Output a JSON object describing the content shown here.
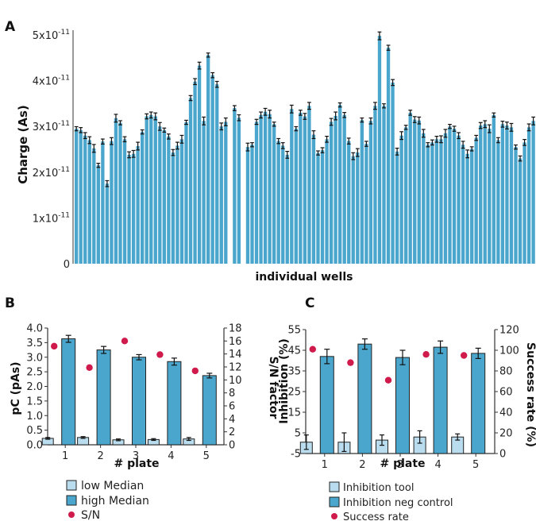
{
  "colors": {
    "bar": "#4aa6cc",
    "bar_dark": "#3d8db3",
    "bar_light": "#b9dcee",
    "dot": "#cf1a4b",
    "axis": "#333333"
  },
  "chart_data": [
    {
      "panel": "A",
      "type": "bar",
      "xlabel": "individual wells",
      "ylabel": "Charge (As)",
      "ylim": [
        0,
        5e-11
      ],
      "yticks": [
        0,
        1e-11,
        2e-11,
        3e-11,
        4e-11,
        5e-11
      ],
      "ytick_labels": [
        {
          "base": "0",
          "exp": ""
        },
        {
          "base": "1x10",
          "exp": "-11"
        },
        {
          "base": "2x10",
          "exp": "-11"
        },
        {
          "base": "3x10",
          "exp": "-11"
        },
        {
          "base": "4x10",
          "exp": "-11"
        },
        {
          "base": "5x10",
          "exp": "-11"
        }
      ],
      "values_e11": [
        2.95,
        2.92,
        2.8,
        2.7,
        2.52,
        2.15,
        2.67,
        1.75,
        2.68,
        3.18,
        3.08,
        2.72,
        2.38,
        2.4,
        2.57,
        2.88,
        3.22,
        3.25,
        3.22,
        3.0,
        2.92,
        2.78,
        2.43,
        2.58,
        2.72,
        3.09,
        3.62,
        3.98,
        4.33,
        3.12,
        4.56,
        4.12,
        3.92,
        3.0,
        3.1,
        null,
        3.4,
        3.19,
        null,
        2.55,
        2.6,
        3.1,
        3.25,
        3.32,
        3.27,
        3.05,
        2.68,
        2.58,
        2.38,
        3.38,
        2.95,
        3.3,
        3.22,
        3.45,
        2.82,
        2.42,
        2.48,
        2.72,
        3.1,
        3.23,
        3.47,
        3.25,
        2.68,
        2.35,
        2.43,
        3.14,
        2.62,
        3.12,
        3.45,
        4.98,
        3.45,
        4.72,
        3.96,
        2.45,
        2.8,
        2.98,
        3.3,
        3.15,
        3.13,
        2.85,
        2.6,
        2.65,
        2.72,
        2.72,
        2.85,
        3.0,
        2.95,
        2.8,
        2.6,
        2.4,
        2.51,
        2.75,
        3.02,
        3.05,
        2.95,
        3.25,
        2.7,
        3.05,
        3.02,
        2.98,
        2.55,
        2.3,
        2.65,
        2.98,
        3.12
      ]
    },
    {
      "panel": "B",
      "type": "bar",
      "xlabel": "# plate",
      "ylabel": "pC (pAs)",
      "y2label": "S/N factor",
      "categories": [
        "1",
        "2",
        "3",
        "4",
        "5"
      ],
      "ylim": [
        0,
        4.0
      ],
      "yticks": [
        "0.0",
        "0.5",
        "1.0",
        "1.5",
        "2.0",
        "2.5",
        "3.0",
        "3.5",
        "4.0"
      ],
      "y2lim": [
        0,
        18
      ],
      "y2ticks": [
        "0",
        "2",
        "4",
        "6",
        "8",
        "10",
        "12",
        "14",
        "16",
        "18"
      ],
      "series": [
        {
          "name": "low Median",
          "values": [
            0.22,
            0.25,
            0.17,
            0.18,
            0.2
          ],
          "err": [
            0.03,
            0.03,
            0.03,
            0.03,
            0.05
          ]
        },
        {
          "name": "high Median",
          "values": [
            3.63,
            3.25,
            3.0,
            2.85,
            2.37
          ],
          "err": [
            0.12,
            0.12,
            0.09,
            0.12,
            0.08
          ]
        },
        {
          "name": "S/N",
          "axis": "right",
          "values": [
            15.2,
            11.9,
            16.0,
            13.9,
            11.4
          ]
        }
      ]
    },
    {
      "panel": "C",
      "type": "bar",
      "xlabel": "# plate",
      "ylabel": "Inhibition (%)",
      "y2label": "Success rate (%)",
      "categories": [
        "1",
        "2",
        "3",
        "4",
        "5"
      ],
      "ylim": [
        -5,
        55
      ],
      "yticks": [
        "-5",
        "5",
        "15",
        "25",
        "35",
        "45",
        "55"
      ],
      "y2lim": [
        0,
        120
      ],
      "y2ticks": [
        "0",
        "20",
        "40",
        "60",
        "80",
        "100",
        "120"
      ],
      "series": [
        {
          "name": "Inhibition tool",
          "values": [
            0.5,
            0.5,
            1.5,
            3.0,
            3.0
          ],
          "err": [
            3.5,
            4.5,
            2.5,
            3.0,
            1.5
          ]
        },
        {
          "name": "Inhibition neg control",
          "values": [
            42,
            48,
            41.5,
            46.5,
            43.5
          ],
          "err": [
            3.5,
            2.5,
            3.5,
            3.0,
            2.5
          ]
        },
        {
          "name": "Success rate",
          "axis": "right",
          "values": [
            101,
            88,
            71,
            96,
            95
          ]
        }
      ]
    }
  ],
  "panels": {
    "a_letter": "A",
    "b_letter": "B",
    "c_letter": "C"
  }
}
